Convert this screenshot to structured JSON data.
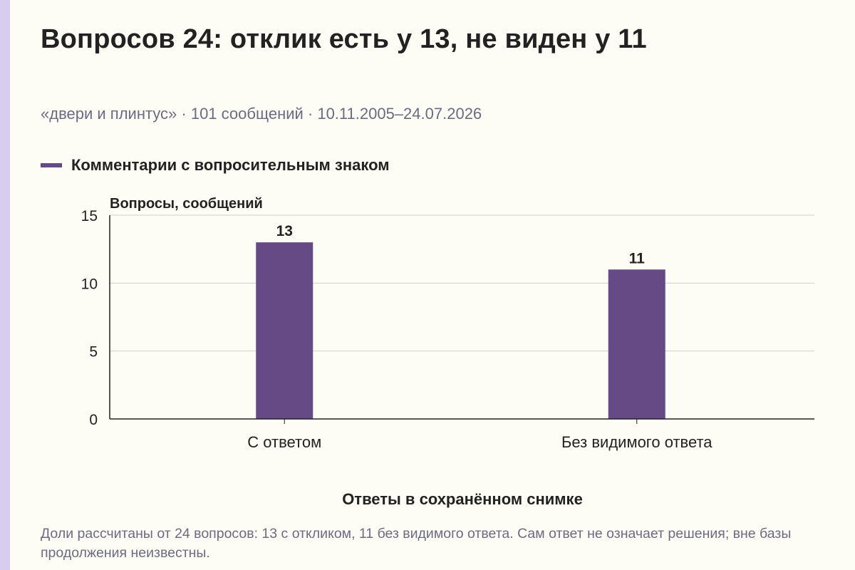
{
  "title": "Вопросов 24: отклик есть у 13, не виден у 11",
  "subtitle": "«двери и плинтус» · 101 сообщений · 10.11.2005–24.07.2026",
  "footnote": "Доли рассчитаны от 24 вопросов: 13 с откликом, 11 без видимого ответа. Сам ответ не означает решения; вне базы продолжения неизвестны.",
  "colors": {
    "bar": "#654a86",
    "grid": "#cfcfcf",
    "axis": "#222222",
    "text": "#222222",
    "muted": "#6b6b82",
    "stripe": "#d9cdef",
    "background": "#fdfcf5"
  },
  "chart_data": {
    "type": "bar",
    "title": "Вопросов 24: отклик есть у 13, не виден у 11",
    "xlabel": "Ответы в сохранённом снимке",
    "ylabel": "Вопросы, сообщений",
    "categories": [
      "С ответом",
      "Без видимого ответа"
    ],
    "series": [
      {
        "name": "Комментарии с вопросительным знаком",
        "values": [
          13,
          11
        ],
        "data_labels": [
          "13",
          "11"
        ]
      }
    ],
    "ylim": [
      0,
      15
    ],
    "yticks": [
      0,
      5,
      10,
      15
    ],
    "ytick_labels": [
      "0",
      "5",
      "10",
      "15"
    ],
    "grid": "horizontal",
    "legend_position": "top-left"
  }
}
